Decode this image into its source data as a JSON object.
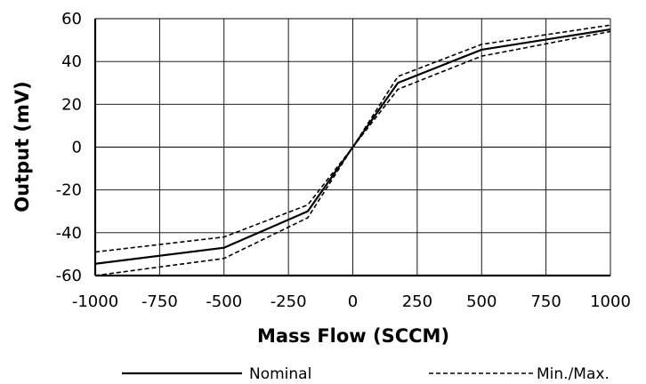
{
  "chart_data": {
    "type": "line",
    "xlabel": "Mass Flow (SCCM)",
    "ylabel": "Output (mV)",
    "xlim": [
      -1000,
      1000
    ],
    "ylim": [
      -60,
      60
    ],
    "xticks": [
      -1000,
      -750,
      -500,
      -250,
      0,
      250,
      500,
      750,
      1000
    ],
    "yticks": [
      60,
      40,
      20,
      0,
      -20,
      -40,
      -60
    ],
    "grid": true,
    "legend_position": "bottom",
    "series": [
      {
        "name": "Nominal",
        "style": "solid",
        "x": [
          -1000,
          -500,
          -175,
          0,
          175,
          500,
          1000
        ],
        "y": [
          -54.5,
          -47,
          -30,
          0,
          30,
          45.5,
          55
        ]
      },
      {
        "name": "Min./Max.",
        "style": "dashed",
        "x": [
          -1000,
          -500,
          -175,
          0,
          175,
          500,
          1000
        ],
        "y": [
          -49,
          -42,
          -27,
          0,
          33,
          48,
          57
        ]
      },
      {
        "name": "",
        "style": "dashed",
        "x": [
          -1000,
          -500,
          -175,
          0,
          175,
          500,
          1000
        ],
        "y": [
          -60,
          -52,
          -33,
          0,
          27,
          42.5,
          54
        ]
      }
    ],
    "legend": [
      {
        "label": "Nominal",
        "style": "solid"
      },
      {
        "label": "Min./Max.",
        "style": "dashed"
      }
    ]
  }
}
